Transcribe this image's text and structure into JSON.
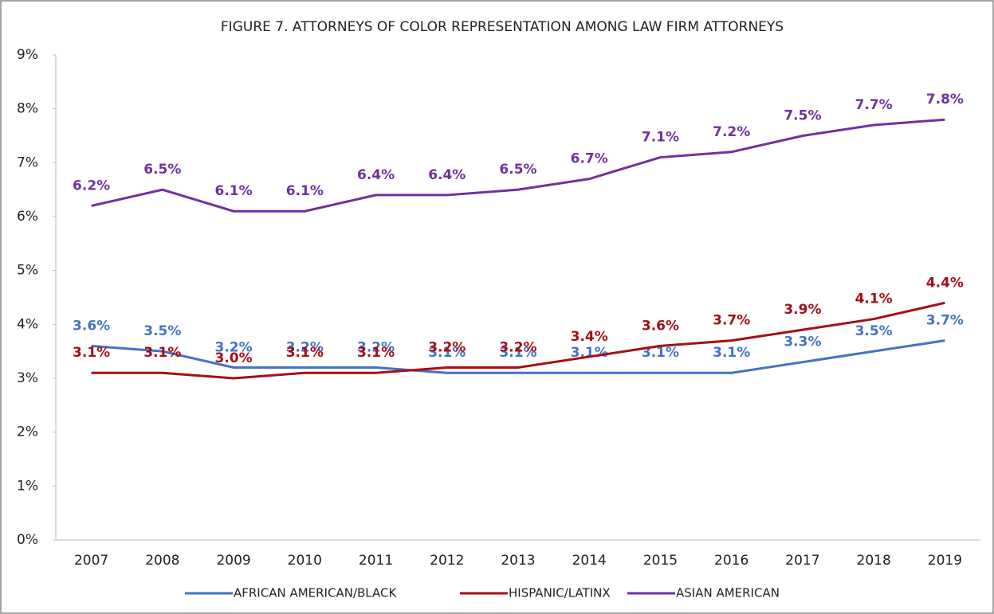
{
  "chart_data": {
    "type": "line",
    "title": "FIGURE 7. ATTORNEYS OF COLOR REPRESENTATION AMONG LAW FIRM ATTORNEYS",
    "categories": [
      "2007",
      "2008",
      "2009",
      "2010",
      "2011",
      "2012",
      "2013",
      "2014",
      "2015",
      "2016",
      "2017",
      "2018",
      "2019"
    ],
    "series": [
      {
        "name": "AFRICAN AMERICAN/BLACK",
        "color": "#4472c4",
        "values": [
          3.6,
          3.5,
          3.2,
          3.2,
          3.2,
          3.1,
          3.1,
          3.1,
          3.1,
          3.1,
          3.3,
          3.5,
          3.7
        ],
        "value_labels": [
          "3.6%",
          "3.5%",
          "3.2%",
          "3.2%",
          "3.2%",
          "3.1%",
          "3.1%",
          "3.1%",
          "3.1%",
          "3.1%",
          "3.3%",
          "3.5%",
          "3.7%"
        ]
      },
      {
        "name": "HISPANIC/LATINX",
        "color": "#a50f15",
        "values": [
          3.1,
          3.1,
          3.0,
          3.1,
          3.1,
          3.2,
          3.2,
          3.4,
          3.6,
          3.7,
          3.9,
          4.1,
          4.4
        ],
        "value_labels": [
          "3.1%",
          "3.1%",
          "3.0%",
          "3.1%",
          "3.1%",
          "3.2%",
          "3.2%",
          "3.4%",
          "3.6%",
          "3.7%",
          "3.9%",
          "4.1%",
          "4.4%"
        ]
      },
      {
        "name": "ASIAN AMERICAN",
        "color": "#7030a0",
        "values": [
          6.2,
          6.5,
          6.1,
          6.1,
          6.4,
          6.4,
          6.5,
          6.7,
          7.1,
          7.2,
          7.5,
          7.7,
          7.8
        ],
        "value_labels": [
          "6.2%",
          "6.5%",
          "6.1%",
          "6.1%",
          "6.4%",
          "6.4%",
          "6.5%",
          "6.7%",
          "7.1%",
          "7.2%",
          "7.5%",
          "7.7%",
          "7.8%"
        ]
      }
    ],
    "ylim": [
      0,
      9
    ],
    "yticks": [
      {
        "value": 0,
        "label": "0%"
      },
      {
        "value": 1,
        "label": "1%"
      },
      {
        "value": 2,
        "label": "2%"
      },
      {
        "value": 3,
        "label": "3%"
      },
      {
        "value": 4,
        "label": "4%"
      },
      {
        "value": 5,
        "label": "5%"
      },
      {
        "value": 6,
        "label": "6%"
      },
      {
        "value": 7,
        "label": "7%"
      },
      {
        "value": 8,
        "label": "8%"
      },
      {
        "value": 9,
        "label": "9%"
      }
    ],
    "legend": "bottom"
  }
}
